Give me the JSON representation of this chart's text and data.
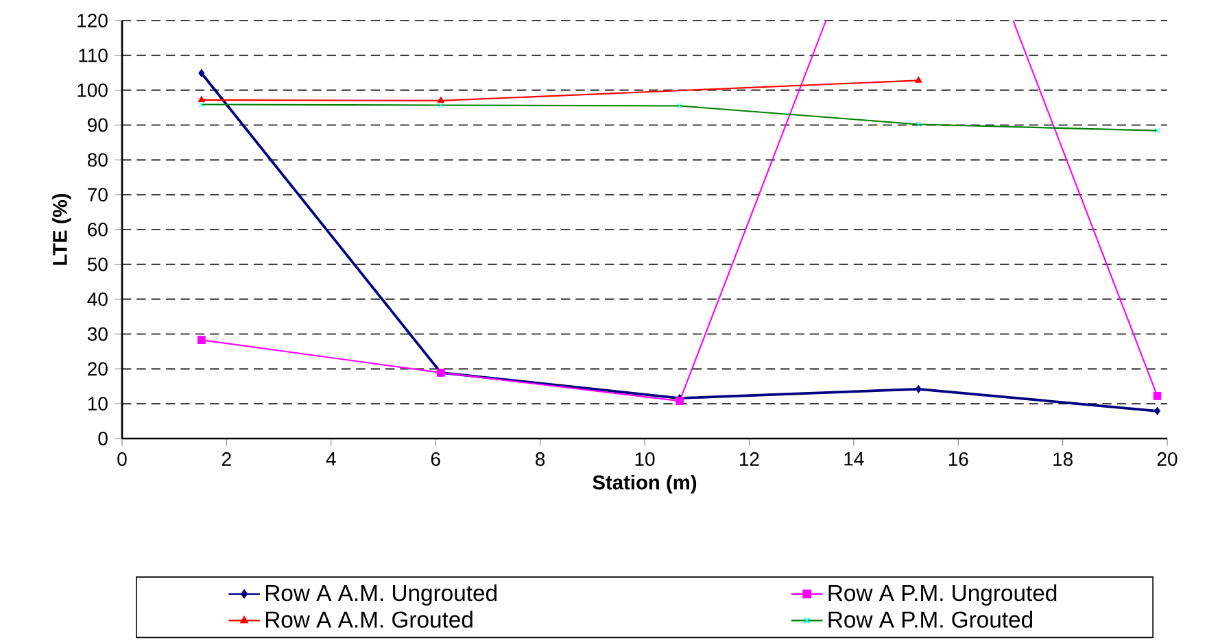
{
  "chart_data": {
    "type": "line",
    "xlabel": "Station (m)",
    "ylabel": "LTE (%)",
    "x": [
      1.52,
      6.1,
      10.67,
      15.24,
      19.81
    ],
    "xlim": [
      0,
      20
    ],
    "xticks": [
      0,
      2,
      4,
      6,
      8,
      10,
      12,
      14,
      16,
      18,
      20
    ],
    "ylim": [
      0,
      120
    ],
    "yticks": [
      0,
      10,
      20,
      30,
      40,
      50,
      60,
      70,
      80,
      90,
      100,
      110,
      120
    ],
    "grid": "y",
    "legend": "bottom",
    "line_style": "solid",
    "series": [
      {
        "name": "Row A A.M. Ungrouted",
        "color": "#000080",
        "marker": "diamond",
        "values": [
          104.9,
          18.9,
          11.6,
          14.2,
          7.9
        ]
      },
      {
        "name": "Row A P.M. Ungrouted",
        "color": "#ff00ff",
        "marker": "square",
        "x": [
          1.52,
          6.1,
          10.67,
          13.47,
          15.24,
          17.05,
          19.81
        ],
        "values": [
          28.3,
          18.9,
          10.8,
          120,
          null,
          120,
          12.2
        ]
      },
      {
        "name": "Row A A.M. Grouted",
        "color": "#ff0000",
        "marker": "triangle",
        "x": [
          1.52,
          6.1,
          15.24
        ],
        "values": [
          97.2,
          97.0,
          102.8
        ]
      },
      {
        "name": "Row A P.M. Grouted",
        "color": "#008000",
        "colors": [
          "#00ffff",
          "#00ffff",
          "#00ffff",
          "#00ffff",
          "#00ffff"
        ],
        "marker": "cross",
        "values": [
          95.9,
          95.7,
          95.5,
          90.2,
          88.4
        ]
      }
    ]
  }
}
